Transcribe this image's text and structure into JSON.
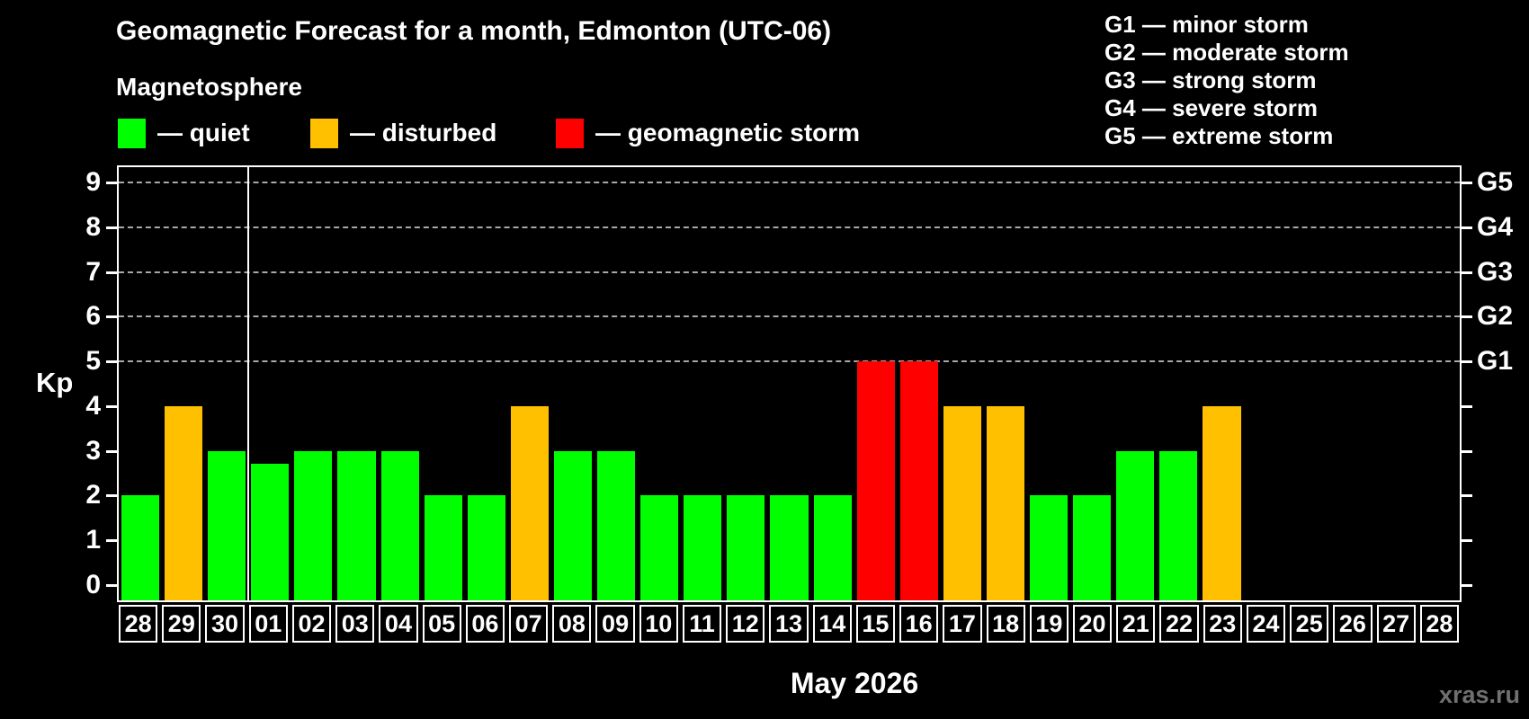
{
  "title": "Geomagnetic Forecast for a month, Edmonton (UTC-06)",
  "subtitle": "Magnetosphere",
  "legend": {
    "items": [
      {
        "name": "quiet",
        "label": "— quiet",
        "color": "#00ff00"
      },
      {
        "name": "disturbed",
        "label": "— disturbed",
        "color": "#ffc000"
      },
      {
        "name": "storm",
        "label": "— geomagnetic storm",
        "color": "#ff0000"
      }
    ]
  },
  "storm_scale_legend": [
    "G1 — minor storm",
    "G2 — moderate storm",
    "G3 — strong storm",
    "G4 — severe storm",
    "G5 — extreme storm"
  ],
  "watermark": "xras.ru",
  "chart_data": {
    "type": "bar",
    "title": "Geomagnetic Forecast for a month, Edmonton (UTC-06)",
    "xlabel": "May 2026",
    "ylabel": "Kp",
    "ylim": [
      -0.35,
      9.35
    ],
    "yticks": [
      0,
      1,
      2,
      3,
      4,
      5,
      6,
      7,
      8,
      9
    ],
    "gridlines_at": [
      5,
      6,
      7,
      8,
      9
    ],
    "grid": "dashed horizontal at storm levels only",
    "right_axis_labels": [
      {
        "kp": 5,
        "label": "G1"
      },
      {
        "kp": 6,
        "label": "G2"
      },
      {
        "kp": 7,
        "label": "G3"
      },
      {
        "kp": 8,
        "label": "G4"
      },
      {
        "kp": 9,
        "label": "G5"
      }
    ],
    "month_separator_before_index": 3,
    "categories": [
      "28",
      "29",
      "30",
      "01",
      "02",
      "03",
      "04",
      "05",
      "06",
      "07",
      "08",
      "09",
      "10",
      "11",
      "12",
      "13",
      "14",
      "15",
      "16",
      "17",
      "18",
      "19",
      "20",
      "21",
      "22",
      "23",
      "24",
      "25",
      "26",
      "27",
      "28"
    ],
    "values": [
      2,
      4,
      3,
      2.7,
      3,
      3,
      3,
      2,
      2,
      4,
      3,
      3,
      2,
      2,
      2,
      2,
      2,
      5,
      5,
      4,
      4,
      2,
      2,
      3,
      3,
      4,
      null,
      null,
      null,
      null,
      null
    ],
    "statuses": [
      "quiet",
      "disturbed",
      "quiet",
      "quiet",
      "quiet",
      "quiet",
      "quiet",
      "quiet",
      "quiet",
      "disturbed",
      "quiet",
      "quiet",
      "quiet",
      "quiet",
      "quiet",
      "quiet",
      "quiet",
      "storm",
      "storm",
      "disturbed",
      "disturbed",
      "quiet",
      "quiet",
      "quiet",
      "quiet",
      "disturbed",
      null,
      null,
      null,
      null,
      null
    ],
    "colors": {
      "quiet": "#00ff00",
      "disturbed": "#ffc000",
      "storm": "#ff0000"
    },
    "background": "#000000",
    "axis_color": "#ffffff",
    "gridline_color": "#a8a8a8",
    "legend_position": "top"
  }
}
